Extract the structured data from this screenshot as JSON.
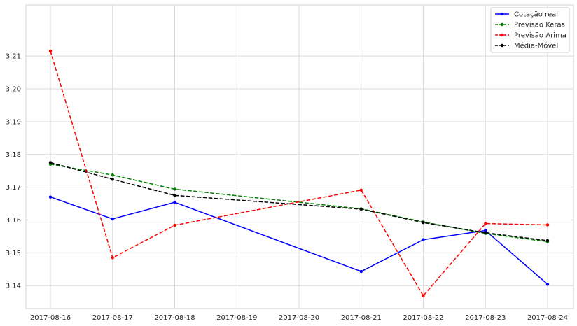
{
  "chart_data": {
    "type": "line",
    "title": "",
    "xlabel": "",
    "ylabel": "",
    "x": [
      "2017-08-16",
      "2017-08-17",
      "2017-08-18",
      "2017-08-21",
      "2017-08-22",
      "2017-08-23",
      "2017-08-24"
    ],
    "x_ticks": [
      "2017-08-16",
      "2017-08-17",
      "2017-08-18",
      "2017-08-19",
      "2017-08-20",
      "2017-08-21",
      "2017-08-22",
      "2017-08-23",
      "2017-08-24"
    ],
    "y_ticks": [
      3.14,
      3.15,
      3.16,
      3.17,
      3.18,
      3.19,
      3.2,
      3.21
    ],
    "y_tick_labels": [
      "3.14",
      "3.15",
      "3.16",
      "3.17",
      "3.18",
      "3.19",
      "3.20",
      "3.21"
    ],
    "ylim": [
      3.133,
      3.2256
    ],
    "grid": true,
    "legend_position": "top-right",
    "series": [
      {
        "name": "Cotação real",
        "color": "#0000ff",
        "dash": "solid",
        "values": [
          3.167,
          3.1603,
          3.1654,
          3.1443,
          3.154,
          3.1568,
          3.1404
        ]
      },
      {
        "name": "Previsão Keras",
        "color": "#008000",
        "dash": "dashed",
        "values": [
          3.177,
          3.1737,
          3.1694,
          3.1634,
          3.1594,
          3.1559,
          3.1534
        ]
      },
      {
        "name": "Previsão Arima",
        "color": "#ff0000",
        "dash": "dashed",
        "values": [
          3.2115,
          3.1485,
          3.1584,
          3.1691,
          3.1369,
          3.1589,
          3.1585
        ]
      },
      {
        "name": "Média-Móvel",
        "color": "#000000",
        "dash": "dashed",
        "values": [
          3.1775,
          3.1724,
          3.1675,
          3.1633,
          3.1592,
          3.1561,
          3.1537
        ]
      }
    ]
  }
}
